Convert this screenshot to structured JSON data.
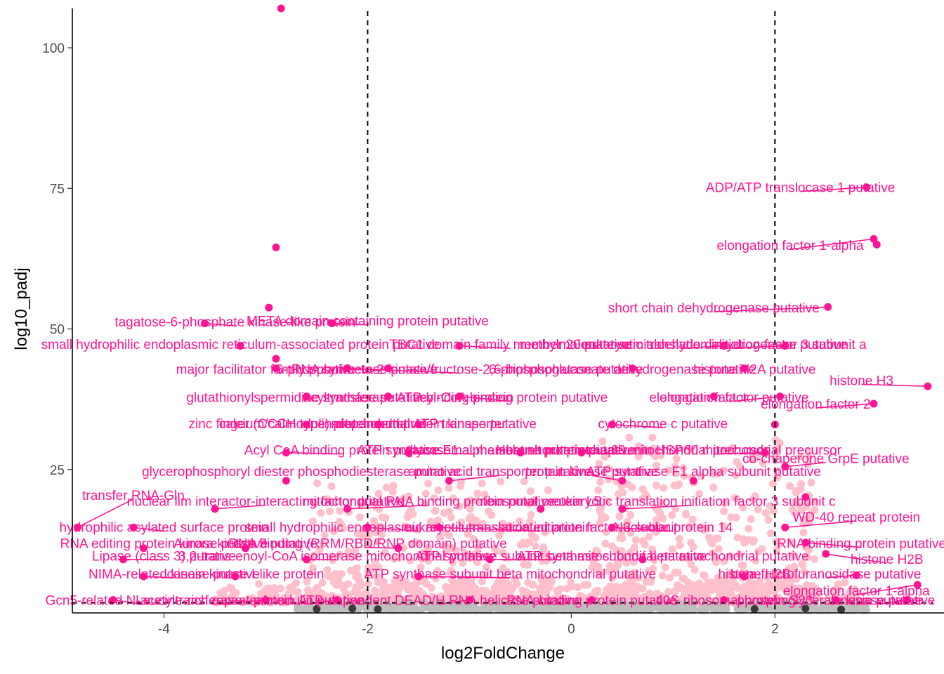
{
  "chart_data": {
    "type": "scatter",
    "title": "",
    "xlabel": "log2FoldChange",
    "ylabel": "log10_padj",
    "xlim": [
      -4.9,
      3.55
    ],
    "ylim": [
      -0.5,
      107
    ],
    "x_ticks": [
      -4,
      -2,
      0,
      2
    ],
    "x_tick_labels": [
      "-4",
      "-2",
      "0",
      "2"
    ],
    "y_ticks": [
      25,
      50,
      75,
      100
    ],
    "y_tick_labels": [
      "25",
      "50",
      "75",
      "100"
    ],
    "thresholds": {
      "vertical_x": [
        -2,
        2
      ],
      "horizontal_y": 1.3
    },
    "grid": false,
    "legend": "none",
    "colors": {
      "highlight": "#ff1493",
      "significant": "#ffc0cb",
      "nonsignificant": "#bebebe",
      "dark": "#3a3a3a"
    },
    "highlighted_points": [
      {
        "x": -2.85,
        "y": 107,
        "label": ""
      },
      {
        "x": -2.9,
        "y": 64.5,
        "label": ""
      },
      {
        "x": -2.97,
        "y": 53.8,
        "label": ""
      },
      {
        "x": -2.9,
        "y": 44.7,
        "label": ""
      },
      {
        "x": -2.35,
        "y": 51,
        "label": "META domain containing protein putative",
        "lx": -2.0,
        "ly": 51.5,
        "anchor": "middle"
      },
      {
        "x": -3.6,
        "y": 51,
        "label": "tagatose-6-phosphate kinase-like protein",
        "lx": -3.3,
        "ly": 51.3,
        "anchor": "middle"
      },
      {
        "x": 2.9,
        "y": 75.2,
        "label": "ADP/ATP translocase 1 putative",
        "lx": 2.25,
        "ly": 75.2,
        "anchor": "middle"
      },
      {
        "x": 2.97,
        "y": 66,
        "label": "elongation factor 1-alpha",
        "lx": 2.15,
        "ly": 64.9,
        "anchor": "middle"
      },
      {
        "x": 3.0,
        "y": 65,
        "label": ""
      },
      {
        "x": 2.52,
        "y": 53.9,
        "label": "short chain dehydrogenase putative",
        "lx": 1.4,
        "ly": 53.8,
        "anchor": "middle"
      },
      {
        "x": 3.5,
        "y": 39.8,
        "label": "histone H3",
        "lx": 2.85,
        "ly": 40.9,
        "anchor": "middle"
      },
      {
        "x": 2.97,
        "y": 36.7,
        "label": "elongation factor 2",
        "lx": 2.4,
        "ly": 36.7,
        "anchor": "middle"
      },
      {
        "x": -3.25,
        "y": 47,
        "label": "small hydrophilic endoplasmic reticulum-associated protein putative",
        "lx": -3.25,
        "ly": 47.3,
        "anchor": "middle"
      },
      {
        "x": -1.1,
        "y": 47,
        "label": "TBC1 domain family member 20 putative",
        "lx": -0.6,
        "ly": 47.3,
        "anchor": "middle"
      },
      {
        "x": 1.5,
        "y": 47,
        "label": "methylmalonate-semialdehyde dehydrogenase putative",
        "lx": 1.1,
        "ly": 47.3,
        "anchor": "middle"
      },
      {
        "x": 2.1,
        "y": 47,
        "label": "eukaryotic translation initiation factor 3 subunit a",
        "lx": 1.5,
        "ly": 47.3,
        "anchor": "middle"
      },
      {
        "x": -2.9,
        "y": 43,
        "label": "major facilitator family putative",
        "lx": -3.0,
        "ly": 42.9,
        "anchor": "middle"
      },
      {
        "x": -2.2,
        "y": 43,
        "label": "6-phosphofructo-2-kinase/fructose-2,6-biphosphatase putative",
        "lx": -1.1,
        "ly": 42.9,
        "anchor": "middle"
      },
      {
        "x": -1.8,
        "y": 43,
        "label": "tRNA synthetase putative",
        "lx": -2.05,
        "ly": 42.9,
        "anchor": "middle"
      },
      {
        "x": 0.6,
        "y": 43,
        "label": "6-phosphogluconate dehydrogenase putative",
        "lx": 0.5,
        "ly": 42.9,
        "anchor": "middle"
      },
      {
        "x": 1.7,
        "y": 43,
        "label": "histone H2A putative",
        "lx": 1.8,
        "ly": 42.9,
        "anchor": "middle"
      },
      {
        "x": -2.6,
        "y": 38,
        "label": "glutathionylspermidine synthase putative",
        "lx": -2.6,
        "ly": 37.9,
        "anchor": "middle"
      },
      {
        "x": -1.8,
        "y": 38,
        "label": "acyltransferase ATP-binding protein",
        "lx": -1.6,
        "ly": 37.9,
        "anchor": "middle"
      },
      {
        "x": -1.1,
        "y": 38,
        "label": "acyl-CoA binding protein putative",
        "lx": -0.6,
        "ly": 37.9,
        "anchor": "middle"
      },
      {
        "x": 1.4,
        "y": 38,
        "label": "elongation factor",
        "lx": 1.25,
        "ly": 37.9,
        "anchor": "middle"
      },
      {
        "x": 2.05,
        "y": 38,
        "label": "elongation factor putative",
        "lx": 1.6,
        "ly": 37.9,
        "anchor": "middle"
      },
      {
        "x": -2.6,
        "y": 33,
        "label": "zinc finger (CCCH type) protein putative",
        "lx": -2.6,
        "ly": 33.2,
        "anchor": "middle"
      },
      {
        "x": -1.9,
        "y": 33,
        "label": "calcium/calmodulin-dependent protein kinase putative",
        "lx": -1.9,
        "ly": 33.2,
        "anchor": "middle"
      },
      {
        "x": -1.5,
        "y": 33,
        "label": "mitochondrial ATP transporter",
        "lx": -1.5,
        "ly": 33.2,
        "anchor": "middle"
      },
      {
        "x": 0.4,
        "y": 33,
        "label": "cytochrome c putative",
        "lx": 0.9,
        "ly": 33.2,
        "anchor": "middle"
      },
      {
        "x": 2.0,
        "y": 33,
        "label": "",
        "lx": 2.0,
        "ly": 33.2,
        "anchor": "middle"
      },
      {
        "x": -2.8,
        "y": 28,
        "label": "Acyl CoA binding protein putative",
        "lx": -2.25,
        "ly": 28.5,
        "anchor": "middle"
      },
      {
        "x": -1.6,
        "y": 28,
        "label": "ATP synthase F1 alpha subunit putative",
        "lx": -0.95,
        "ly": 28.5,
        "anchor": "middle"
      },
      {
        "x": -0.5,
        "y": 28,
        "label": "glycosomal membrane protein putative",
        "lx": -0.5,
        "ly": 28.5,
        "anchor": "middle"
      },
      {
        "x": 0.1,
        "y": 28,
        "label": "Heat shock protein 60 mitochondrial precursor",
        "lx": 0.6,
        "ly": 28.5,
        "anchor": "middle"
      },
      {
        "x": 1.9,
        "y": 28,
        "label": "chaperonin HSP60 mitochondrial precursor",
        "lx": 1.4,
        "ly": 28.5,
        "anchor": "middle"
      },
      {
        "x": 2.1,
        "y": 25.5,
        "label": "co-chaperone GrpE putative",
        "lx": 2.5,
        "ly": 27.0,
        "anchor": "middle"
      },
      {
        "x": -2.8,
        "y": 23,
        "label": "glycerophosphoryl diester phosphodiesterase putative",
        "lx": -2.65,
        "ly": 24.7,
        "anchor": "middle"
      },
      {
        "x": -1.2,
        "y": 23,
        "label": "amino acid transporter putative",
        "lx": -0.7,
        "ly": 24.7,
        "anchor": "middle"
      },
      {
        "x": 0.5,
        "y": 23,
        "label": "protein kinase putative",
        "lx": 0.2,
        "ly": 24.7,
        "anchor": "middle"
      },
      {
        "x": 1.2,
        "y": 23,
        "label": "ATP synthase F1 alpha subunit putative",
        "lx": 1.3,
        "ly": 24.7,
        "anchor": "middle"
      },
      {
        "x": -4.85,
        "y": 14.7,
        "label": "transfer RNA-Gln",
        "lx": -4.3,
        "ly": 20.5,
        "anchor": "middle"
      },
      {
        "x": -3.5,
        "y": 18,
        "label": "nuclear lim interactor-interacting factor putative",
        "lx": -3.0,
        "ly": 19.4,
        "anchor": "middle"
      },
      {
        "x": -2.2,
        "y": 18,
        "label": "mitochondrial RNA binding protein putative",
        "lx": -1.4,
        "ly": 19.4,
        "anchor": "middle"
      },
      {
        "x": -0.3,
        "y": 18,
        "label": "ribosomal protein L5",
        "lx": -0.3,
        "ly": 19.4,
        "anchor": "middle"
      },
      {
        "x": 0.5,
        "y": 18,
        "label": "eukaryotic translation initiation factor 3 subunit c",
        "lx": 1.2,
        "ly": 19.4,
        "anchor": "middle"
      },
      {
        "x": 2.3,
        "y": 20.1,
        "label": "",
        "lx": 2.3,
        "ly": 20.1,
        "anchor": "middle"
      },
      {
        "x": -4.3,
        "y": 14.7,
        "label": "hydrophilic acylated surface protein",
        "lx": -4.0,
        "ly": 14.8,
        "anchor": "middle"
      },
      {
        "x": -2.0,
        "y": 14.7,
        "label": "small hydrophilic endoplasmic reticulum-associated protein",
        "lx": -1.5,
        "ly": 14.8,
        "anchor": "middle"
      },
      {
        "x": -1.3,
        "y": 14.7,
        "label": "eukaryotic translation initiation factor 3 subunit",
        "lx": -0.3,
        "ly": 14.8,
        "anchor": "middle"
      },
      {
        "x": 0.4,
        "y": 14.7,
        "label": "Nucleolar protein 14",
        "lx": 1.0,
        "ly": 14.8,
        "anchor": "middle"
      },
      {
        "x": 2.1,
        "y": 14.7,
        "label": "WD-40 repeat protein",
        "lx": 2.8,
        "ly": 16.6,
        "anchor": "middle"
      },
      {
        "x": -4.2,
        "y": 11,
        "label": "RNA editing protein kinase putative",
        "lx": -4.0,
        "ly": 11.9,
        "anchor": "middle"
      },
      {
        "x": -3.2,
        "y": 11,
        "label": "Aurora kinase 3 putative",
        "lx": -3.2,
        "ly": 11.9,
        "anchor": "middle"
      },
      {
        "x": -1.7,
        "y": 11,
        "label": "RNA binding (RRM/RBD/RNP domain) putative",
        "lx": -2.0,
        "ly": 11.9,
        "anchor": "middle"
      },
      {
        "x": 2.3,
        "y": 12,
        "label": "RNA binding protein putative",
        "lx": 2.85,
        "ly": 11.9,
        "anchor": "middle"
      },
      {
        "x": -4.4,
        "y": 9,
        "label": "Lipase (class 3) putative",
        "lx": -4.0,
        "ly": 9.7,
        "anchor": "middle"
      },
      {
        "x": -2.6,
        "y": 9,
        "label": "3,2-trans-enoyl-CoA isomerase mitochondrial putative",
        "lx": -2.3,
        "ly": 9.7,
        "anchor": "middle"
      },
      {
        "x": -0.8,
        "y": 9,
        "label": "ATP synthase subunit beta mitochondrial putative",
        "lx": -0.1,
        "ly": 9.7,
        "anchor": "middle"
      },
      {
        "x": 0.7,
        "y": 9,
        "label": "ATP synthase subunit beta mitochondrial putative",
        "lx": 0.9,
        "ly": 9.7,
        "anchor": "middle"
      },
      {
        "x": 2.5,
        "y": 10,
        "label": "histone H2B",
        "lx": 3.1,
        "ly": 9.1,
        "anchor": "middle"
      },
      {
        "x": -4.2,
        "y": 6,
        "label": "NIMA-related kinase putative",
        "lx": -3.9,
        "ly": 6.5,
        "anchor": "middle"
      },
      {
        "x": -3.3,
        "y": 6,
        "label": "casein kinase I-like protein",
        "lx": -3.2,
        "ly": 6.5,
        "anchor": "middle"
      },
      {
        "x": -1.5,
        "y": 6,
        "label": "ATP synthase subunit beta mitochondrial putative",
        "lx": -0.6,
        "ly": 6.5,
        "anchor": "middle"
      },
      {
        "x": 1.7,
        "y": 6,
        "label": "histone H2B",
        "lx": 1.8,
        "ly": 6.5,
        "anchor": "middle"
      },
      {
        "x": 2.8,
        "y": 6.2,
        "label": "beta-fructofuranosidase putative",
        "lx": 2.5,
        "ly": 6.5,
        "anchor": "middle"
      },
      {
        "x": 3.4,
        "y": 4.5,
        "label": "elongation factor 1-alpha",
        "lx": 2.8,
        "ly": 3.5,
        "anchor": "middle"
      },
      {
        "x": -4.5,
        "y": 1.8,
        "label": "Gcn5-related N-acetyltransferase",
        "lx": -4.2,
        "ly": 1.8,
        "anchor": "middle"
      },
      {
        "x": -3.0,
        "y": 1.8,
        "label": "Leucine-rich repeat protein",
        "lx": -3.5,
        "ly": 1.8,
        "anchor": "middle"
      },
      {
        "x": -2.3,
        "y": 1.8,
        "label": "calmodulin putative",
        "lx": -2.6,
        "ly": 1.8,
        "anchor": "middle"
      },
      {
        "x": -1.0,
        "y": 1.8,
        "label": "ATP-dependent DEAD/H RNA helicase putative",
        "lx": -1.3,
        "ly": 1.8,
        "anchor": "middle"
      },
      {
        "x": 0.2,
        "y": 1.8,
        "label": "RNA-binding protein putative",
        "lx": 0.2,
        "ly": 1.8,
        "anchor": "middle"
      },
      {
        "x": 1.5,
        "y": 1.8,
        "label": "40S ribosomal protein S33",
        "lx": 1.6,
        "ly": 1.8,
        "anchor": "middle"
      },
      {
        "x": 2.6,
        "y": 1.8,
        "label": "phosphoglycerate kinase putative",
        "lx": 2.6,
        "ly": 1.8,
        "anchor": "middle"
      },
      {
        "x": 3.3,
        "y": 1.8,
        "label": "kinesin putative",
        "lx": 3.0,
        "ly": 1.8,
        "anchor": "middle"
      }
    ],
    "background_clusters": [
      {
        "group": "significant",
        "x_range": [
          -2.6,
          -0.2
        ],
        "y_range": [
          1.5,
          23
        ],
        "n": 420
      },
      {
        "group": "significant",
        "x_range": [
          0.2,
          2.4
        ],
        "y_range": [
          1.5,
          31
        ],
        "n": 480
      },
      {
        "group": "significant",
        "x_range": [
          -3.5,
          2.9
        ],
        "y_range": [
          1.3,
          5
        ],
        "n": 360
      },
      {
        "group": "nonsignificant",
        "x_range": [
          -2.7,
          2.9
        ],
        "y_range": [
          0,
          1.3
        ],
        "n": 520
      }
    ]
  }
}
